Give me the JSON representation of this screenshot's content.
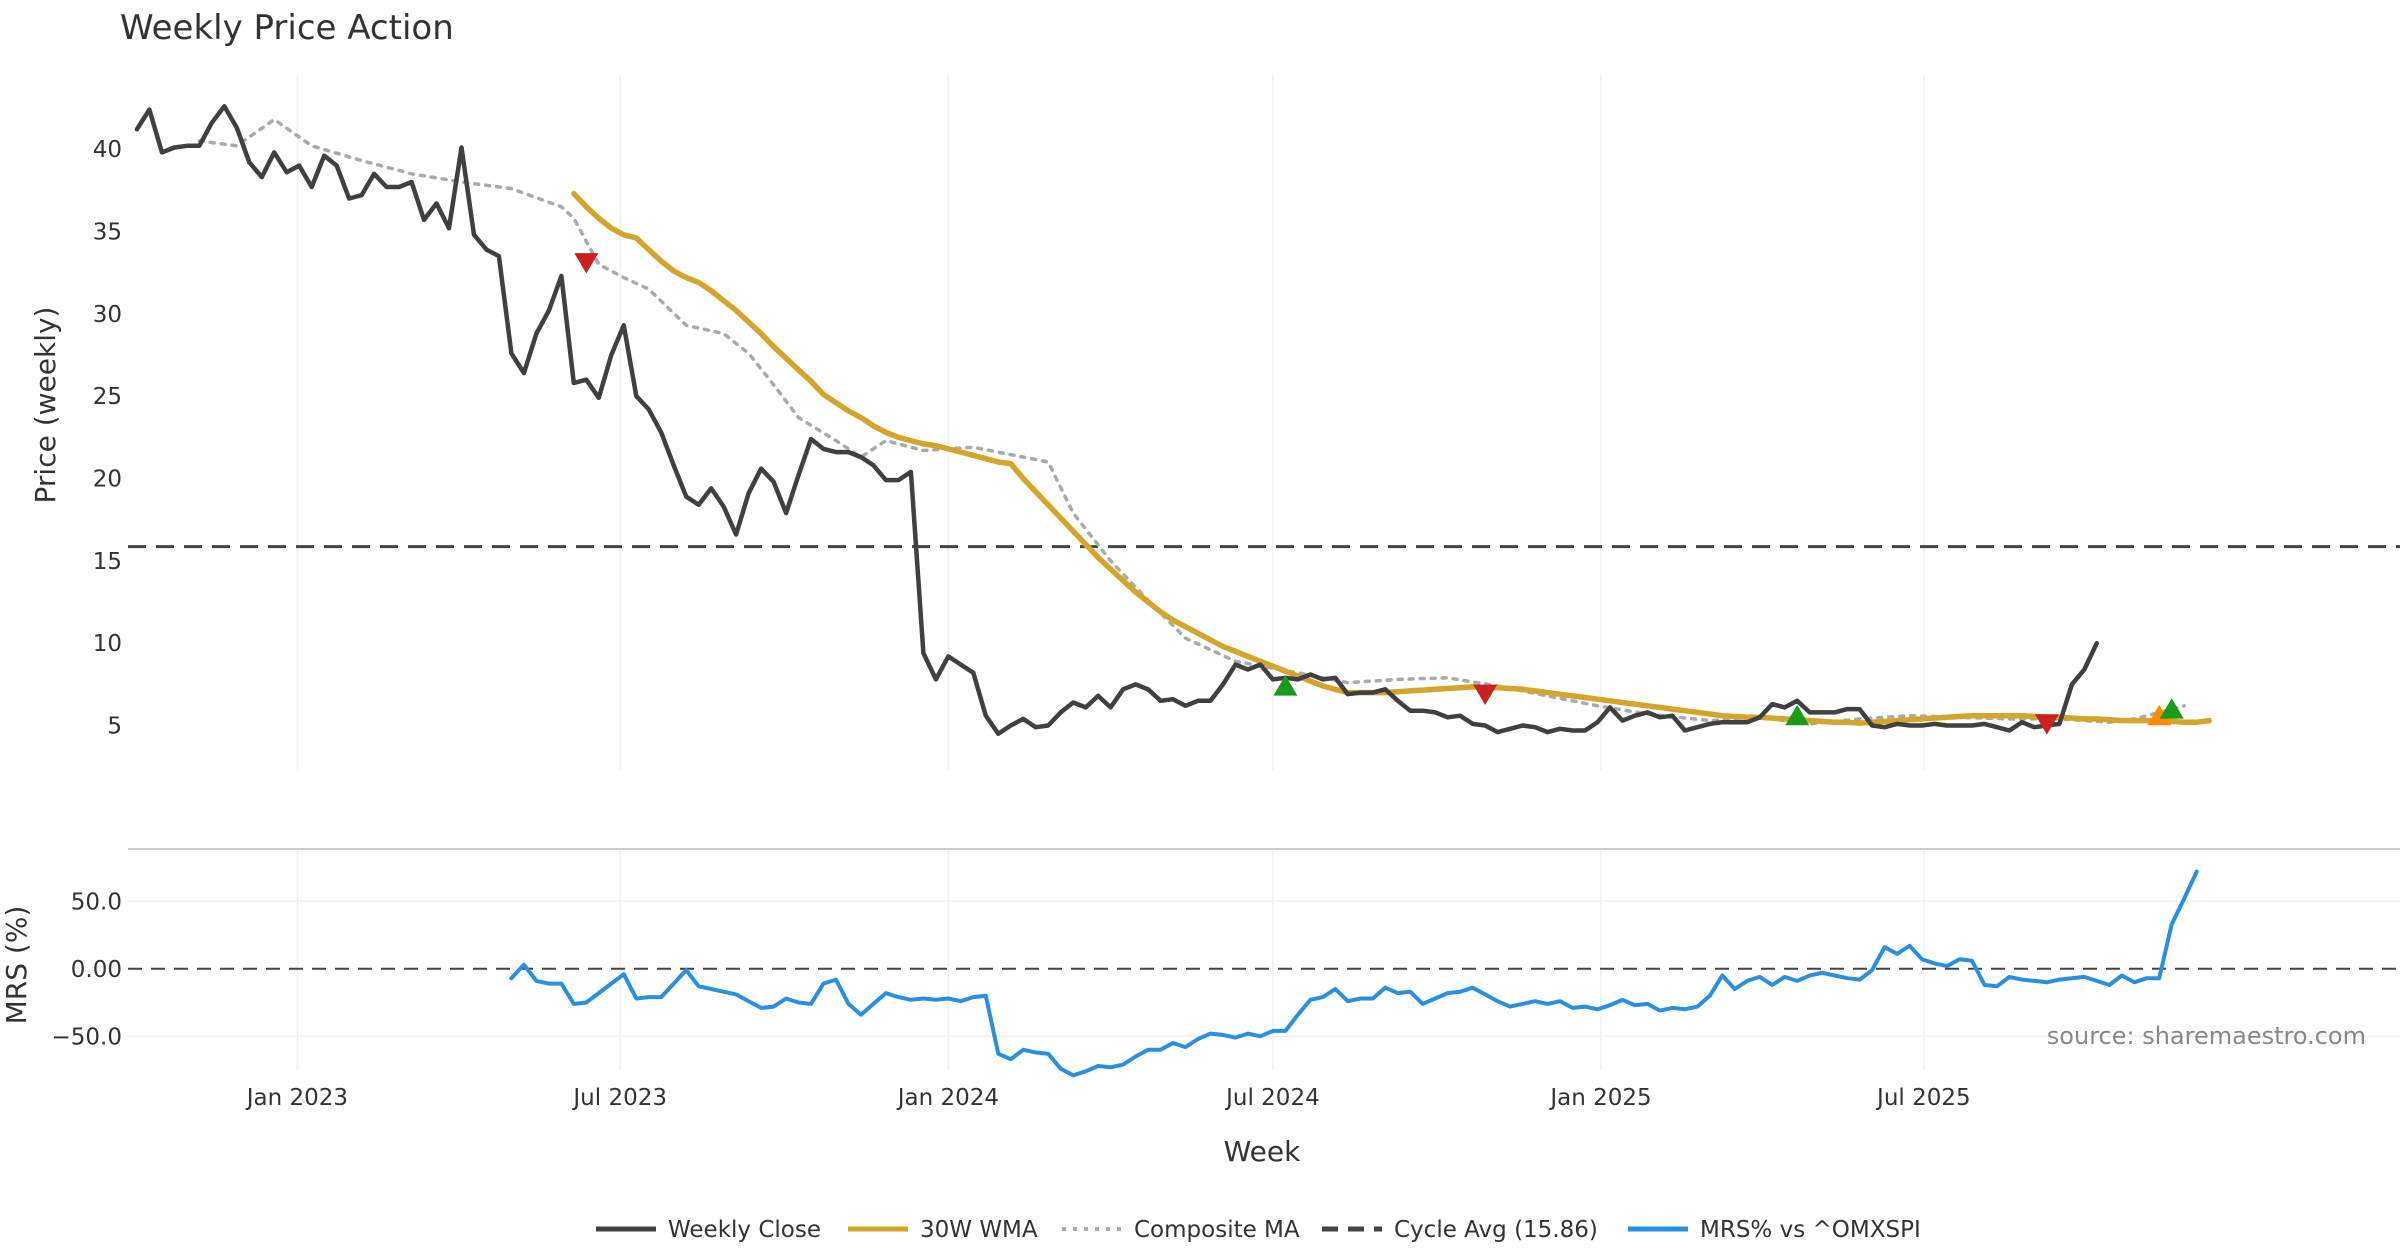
{
  "chart_data": {
    "type": "line",
    "title": "Weekly Price Action",
    "xlabel": "Week",
    "x_ticks": [
      {
        "label": "Jan 2023",
        "date": "2023-01-01"
      },
      {
        "label": "Jul 2023",
        "date": "2023-07-01"
      },
      {
        "label": "Jan 2024",
        "date": "2024-01-01"
      },
      {
        "label": "Jul 2024",
        "date": "2024-07-01"
      },
      {
        "label": "Jan 2025",
        "date": "2025-01-01"
      },
      {
        "label": "Jul 2025",
        "date": "2025-07-01"
      }
    ],
    "xlim": [
      "2022-09-28",
      "2026-03-25"
    ],
    "price_panel": {
      "ylabel": "Price (weekly)",
      "ylim": [
        2.3,
        44.5
      ],
      "yticks": [
        5,
        10,
        15,
        20,
        25,
        30,
        35,
        40
      ],
      "cycle_avg": 15.86,
      "series": [
        {
          "name": "Weekly Close",
          "color": "#404040",
          "style": "solid",
          "start": "2022-10-03",
          "step_days": 7,
          "values": [
            41.2,
            42.4,
            39.8,
            40.1,
            40.2,
            40.2,
            41.6,
            42.6,
            41.3,
            39.2,
            38.3,
            39.8,
            38.6,
            39.0,
            37.7,
            39.6,
            39.0,
            37.0,
            37.2,
            38.5,
            37.7,
            37.7,
            38.0,
            35.7,
            36.7,
            35.2,
            40.1,
            34.8,
            33.9,
            33.5,
            27.6,
            26.4,
            28.8,
            30.2,
            32.3,
            25.8,
            26.0,
            24.9,
            27.5,
            29.3,
            25.0,
            24.2,
            22.8,
            20.8,
            18.9,
            18.4,
            19.4,
            18.3,
            16.6,
            19.1,
            20.6,
            19.8,
            17.9,
            20.2,
            22.4,
            21.8,
            21.6,
            21.6,
            21.3,
            20.8,
            19.9,
            19.9,
            20.4,
            9.4,
            7.8,
            9.2,
            8.7,
            8.2,
            5.6,
            4.5,
            5.0,
            5.4,
            4.9,
            5.0,
            5.8,
            6.4,
            6.1,
            6.8,
            6.1,
            7.2,
            7.5,
            7.2,
            6.5,
            6.6,
            6.2,
            6.5,
            6.5,
            7.5,
            8.7,
            8.4,
            8.7,
            7.8,
            7.9,
            7.8,
            8.1,
            7.8,
            7.9,
            6.9,
            7.0,
            7.0,
            7.2,
            6.5,
            5.9,
            5.9,
            5.8,
            5.5,
            5.6,
            5.1,
            5.0,
            4.6,
            4.8,
            5.0,
            4.9,
            4.6,
            4.8,
            4.7,
            4.7,
            5.2,
            6.1,
            5.3,
            5.6,
            5.8,
            5.5,
            5.6,
            4.7,
            4.9,
            5.1,
            5.2,
            5.2,
            5.2,
            5.5,
            6.3,
            6.1,
            6.5,
            5.8,
            5.8,
            5.8,
            6.0,
            6.0,
            5.0,
            4.9,
            5.1,
            5.0,
            5.0,
            5.1,
            5.0,
            5.0,
            5.0,
            5.1,
            4.9,
            4.7,
            5.2,
            4.9,
            5.0,
            5.1,
            7.5,
            8.4,
            10.0
          ]
        },
        {
          "name": "30W WMA",
          "color": "#d4a52a",
          "style": "solid",
          "start": "2023-06-05",
          "step_days": 7,
          "values": [
            37.3,
            36.5,
            35.8,
            35.2,
            34.8,
            34.6,
            33.9,
            33.2,
            32.6,
            32.2,
            31.9,
            31.4,
            30.8,
            30.2,
            29.5,
            28.8,
            28.0,
            27.3,
            26.6,
            25.9,
            25.1,
            24.6,
            24.1,
            23.7,
            23.2,
            22.8,
            22.5,
            22.3,
            22.1,
            22.0,
            21.8,
            21.6,
            21.4,
            21.2,
            21.0,
            20.9,
            20.0,
            19.2,
            18.4,
            17.6,
            16.8,
            16.0,
            15.2,
            14.5,
            13.8,
            13.1,
            12.5,
            11.9,
            11.4,
            11.0,
            10.6,
            10.2,
            9.8,
            9.5,
            9.2,
            8.9,
            8.6,
            8.3,
            8.0,
            7.7,
            7.4,
            7.2,
            7.0,
            7.0,
            7.0,
            7.0,
            7.05,
            7.1,
            7.15,
            7.2,
            7.25,
            7.3,
            7.35,
            7.3,
            7.3,
            7.25,
            7.2,
            7.1,
            7.0,
            6.9,
            6.8,
            6.7,
            6.6,
            6.5,
            6.4,
            6.3,
            6.2,
            6.1,
            6.0,
            5.9,
            5.8,
            5.7,
            5.6,
            5.55,
            5.5,
            5.5,
            5.45,
            5.4,
            5.35,
            5.3,
            5.25,
            5.2,
            5.2,
            5.15,
            5.2,
            5.25,
            5.3,
            5.35,
            5.4,
            5.45,
            5.5,
            5.55,
            5.6,
            5.6,
            5.6,
            5.6,
            5.6,
            5.55,
            5.5,
            5.5,
            5.45,
            5.4,
            5.4,
            5.35,
            5.3,
            5.3,
            5.3,
            5.25,
            5.25,
            5.2,
            5.2,
            5.3
          ]
        },
        {
          "name": "Composite MA",
          "color": "#aaaaaa",
          "style": "dotted",
          "points": [
            [
              "2022-11-07",
              40.5
            ],
            [
              "2022-11-28",
              40.2
            ],
            [
              "2022-12-19",
              41.8
            ],
            [
              "2023-01-09",
              40.2
            ],
            [
              "2023-02-06",
              39.3
            ],
            [
              "2023-03-06",
              38.5
            ],
            [
              "2023-04-03",
              38.0
            ],
            [
              "2023-05-01",
              37.6
            ],
            [
              "2023-05-29",
              36.5
            ],
            [
              "2023-06-05",
              35.8
            ],
            [
              "2023-06-19",
              33.0
            ],
            [
              "2023-07-03",
              32.2
            ],
            [
              "2023-07-17",
              31.5
            ],
            [
              "2023-08-07",
              29.3
            ],
            [
              "2023-08-28",
              28.8
            ],
            [
              "2023-09-11",
              27.6
            ],
            [
              "2023-09-25",
              25.7
            ],
            [
              "2023-10-09",
              23.7
            ],
            [
              "2023-10-30",
              22.3
            ],
            [
              "2023-11-13",
              21.3
            ],
            [
              "2023-11-27",
              22.3
            ],
            [
              "2023-12-18",
              21.7
            ],
            [
              "2024-01-15",
              21.9
            ],
            [
              "2024-02-12",
              21.3
            ],
            [
              "2024-02-26",
              21.0
            ],
            [
              "2024-03-11",
              17.9
            ],
            [
              "2024-04-01",
              15.0
            ],
            [
              "2024-04-22",
              12.6
            ],
            [
              "2024-05-13",
              10.3
            ],
            [
              "2024-06-10",
              8.9
            ],
            [
              "2024-07-15",
              8.2
            ],
            [
              "2024-08-12",
              7.6
            ],
            [
              "2024-09-09",
              7.8
            ],
            [
              "2024-10-07",
              7.9
            ],
            [
              "2024-11-04",
              7.4
            ],
            [
              "2024-12-02",
              6.8
            ],
            [
              "2024-12-30",
              6.2
            ],
            [
              "2025-01-27",
              5.7
            ],
            [
              "2025-03-03",
              5.3
            ],
            [
              "2025-03-31",
              5.5
            ],
            [
              "2025-04-28",
              5.1
            ],
            [
              "2025-05-26",
              5.4
            ],
            [
              "2025-06-23",
              5.6
            ],
            [
              "2025-07-21",
              5.5
            ],
            [
              "2025-08-18",
              5.4
            ],
            [
              "2025-09-15",
              5.4
            ],
            [
              "2025-10-13",
              5.2
            ],
            [
              "2025-10-27",
              5.4
            ],
            [
              "2025-11-24",
              6.2
            ]
          ]
        }
      ],
      "markers": [
        {
          "date": "2023-06-12",
          "value": 33.1,
          "shape": "triangle-down",
          "color": "#cc1f1f"
        },
        {
          "date": "2024-07-08",
          "value": 7.4,
          "shape": "triangle-up",
          "color": "#1a9a1a"
        },
        {
          "date": "2024-10-28",
          "value": 6.9,
          "shape": "triangle-down",
          "color": "#cc1f1f"
        },
        {
          "date": "2025-04-21",
          "value": 5.6,
          "shape": "triangle-up",
          "color": "#1a9a1a"
        },
        {
          "date": "2025-09-08",
          "value": 5.1,
          "shape": "triangle-down",
          "color": "#cc1f1f"
        },
        {
          "date": "2025-11-10",
          "value": 5.6,
          "shape": "triangle-up",
          "color": "#ff8c00"
        },
        {
          "date": "2025-11-17",
          "value": 6.0,
          "shape": "triangle-up",
          "color": "#1a9a1a"
        }
      ]
    },
    "mrs_panel": {
      "ylabel": "MRS (%)",
      "ylim": [
        -75,
        88
      ],
      "yticks": [
        {
          "value": 50,
          "label": "50.0"
        },
        {
          "value": 0,
          "label": "0.00"
        },
        {
          "value": -50,
          "label": "−50.0"
        }
      ],
      "zero_line": 0,
      "series": [
        {
          "name": "MRS% vs ^OMXSPI",
          "color": "#2b8fe0",
          "style": "solid",
          "start": "2023-05-01",
          "step_days": 7,
          "values": [
            -7,
            3,
            -9,
            -11,
            -11,
            -26,
            -25,
            -18,
            -11,
            -4,
            -22,
            -21,
            -21,
            -11,
            -1,
            -13,
            -15,
            -17,
            -19,
            -24,
            -29,
            -28,
            -22,
            -25,
            -26,
            -11,
            -8,
            -26,
            -34,
            -26,
            -18,
            -21,
            -23,
            -22,
            -23,
            -22,
            -24,
            -21,
            -20,
            -63,
            -67,
            -60,
            -62,
            -63,
            -74,
            -79,
            -76,
            -72,
            -73,
            -71,
            -65,
            -60,
            -60,
            -55,
            -58,
            -52,
            -48,
            -49,
            -51,
            -48,
            -50,
            -46,
            -46,
            -34,
            -23,
            -21,
            -15,
            -24,
            -22,
            -22,
            -14,
            -18,
            -17,
            -26,
            -22,
            -18,
            -17,
            -14,
            -19,
            -24,
            -28,
            -26,
            -24,
            -26,
            -24,
            -29,
            -28,
            -30,
            -27,
            -23,
            -27,
            -26,
            -31,
            -29,
            -30,
            -28,
            -20,
            -5,
            -15,
            -9,
            -6,
            -12,
            -6,
            -9,
            -5,
            -3,
            -5,
            -7,
            -8,
            -1,
            16,
            11,
            17,
            7,
            4,
            2,
            7,
            6,
            -12,
            -13,
            -6,
            -8,
            -9,
            -10,
            -8,
            -7,
            -6,
            -9,
            -12,
            -5,
            -10,
            -7,
            -7,
            33,
            52,
            72
          ]
        }
      ]
    },
    "legend": [
      {
        "label": "Weekly Close",
        "color": "#404040",
        "style": "solid"
      },
      {
        "label": "30W WMA",
        "color": "#d4a52a",
        "style": "solid"
      },
      {
        "label": "Composite MA",
        "color": "#aaaaaa",
        "style": "dotted"
      },
      {
        "label": "Cycle Avg (15.86)",
        "color": "#444444",
        "style": "dashed"
      },
      {
        "label": "MRS% vs ^OMXSPI",
        "color": "#2b8fe0",
        "style": "solid"
      }
    ],
    "annotation": "source: sharemaestro.com"
  }
}
